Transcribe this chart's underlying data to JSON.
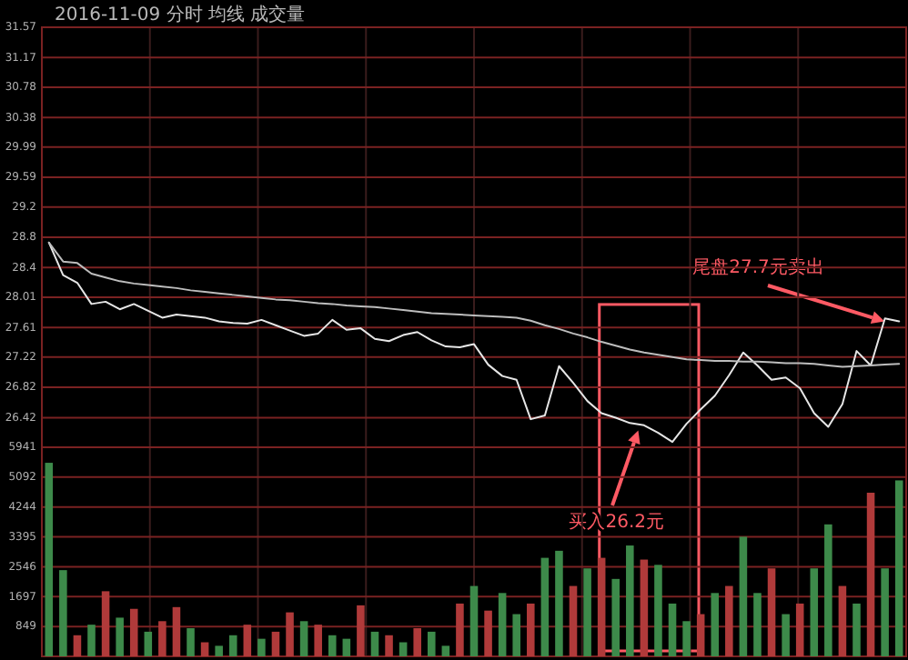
{
  "chart_data": [
    {
      "type": "line",
      "title": "2016-11-09 分时 均线 成交量",
      "categories": [
        null,
        null,
        null,
        null,
        null,
        null,
        null,
        null,
        null,
        null,
        null,
        null,
        null,
        null,
        null,
        null,
        null,
        null,
        null,
        null,
        null,
        null,
        null,
        null,
        null,
        null,
        null,
        null,
        null,
        null,
        null,
        null,
        null,
        null,
        null,
        null,
        null,
        null,
        null,
        null,
        null,
        null,
        null,
        null,
        null,
        null,
        null,
        null,
        null,
        null,
        null,
        null,
        null,
        null,
        null,
        null,
        null,
        null,
        null,
        null,
        null
      ],
      "ylim": [
        26.03,
        31.57
      ],
      "yticks": [
        31.57,
        31.17,
        30.78,
        30.38,
        29.99,
        29.59,
        29.2,
        28.8,
        28.4,
        28.01,
        27.61,
        27.22,
        26.82,
        26.42
      ],
      "grid": true,
      "tick_labels": "y",
      "series": [
        {
          "color": "#e6e6e6",
          "values": [
            28.73,
            28.3,
            28.2,
            27.92,
            27.95,
            27.85,
            27.92,
            27.83,
            27.74,
            27.78,
            27.76,
            27.74,
            27.69,
            27.67,
            27.66,
            27.71,
            27.64,
            27.57,
            27.5,
            27.53,
            27.71,
            27.58,
            27.6,
            27.46,
            27.43,
            27.51,
            27.55,
            27.44,
            27.36,
            27.35,
            27.39,
            27.12,
            26.97,
            26.92,
            26.4,
            26.45,
            27.1,
            26.88,
            26.64,
            26.48,
            26.42,
            26.35,
            26.32,
            26.22,
            26.1,
            26.34,
            26.53,
            26.71,
            26.98,
            27.28,
            27.11,
            26.92,
            26.95,
            26.81,
            26.48,
            26.3,
            26.6,
            27.3,
            27.11,
            27.73,
            27.69
          ]
        },
        {
          "color": "#bdbdbd",
          "values": [
            28.73,
            28.48,
            28.46,
            28.32,
            28.27,
            28.22,
            28.19,
            28.17,
            28.15,
            28.13,
            28.1,
            28.08,
            28.06,
            28.04,
            28.02,
            28.0,
            27.98,
            27.97,
            27.95,
            27.93,
            27.92,
            27.9,
            27.89,
            27.88,
            27.86,
            27.84,
            27.82,
            27.8,
            27.79,
            27.78,
            27.77,
            27.76,
            27.75,
            27.74,
            27.7,
            27.64,
            27.59,
            27.53,
            27.48,
            27.42,
            27.37,
            27.32,
            27.28,
            27.25,
            27.22,
            27.19,
            27.18,
            27.17,
            27.17,
            27.16,
            27.16,
            27.15,
            27.14,
            27.14,
            27.13,
            27.11,
            27.09,
            27.1,
            27.11,
            27.12,
            27.13
          ]
        }
      ],
      "annotations": [
        "买入26.2元",
        "尾盘27.7元卖出"
      ]
    },
    {
      "type": "bar",
      "categories": [
        null,
        null,
        null,
        null,
        null,
        null,
        null,
        null,
        null,
        null,
        null,
        null,
        null,
        null,
        null,
        null,
        null,
        null,
        null,
        null,
        null,
        null,
        null,
        null,
        null,
        null,
        null,
        null,
        null,
        null,
        null,
        null,
        null,
        null,
        null,
        null,
        null,
        null,
        null,
        null,
        null,
        null,
        null,
        null,
        null,
        null,
        null,
        null,
        null,
        null,
        null,
        null,
        null,
        null,
        null,
        null,
        null,
        null,
        null,
        null,
        null
      ],
      "ylim": [
        0,
        5941
      ],
      "yticks": [
        5941,
        5092,
        4244,
        3395,
        2546,
        1697,
        849
      ],
      "grid": true,
      "tick_labels": "y",
      "values": [
        5500,
        2450,
        600,
        900,
        1850,
        1100,
        1350,
        700,
        1000,
        1400,
        800,
        400,
        300,
        600,
        900,
        500,
        700,
        1250,
        1000,
        900,
        600,
        500,
        1450,
        700,
        600,
        400,
        800,
        700,
        300,
        1500,
        2000,
        1300,
        1800,
        1200,
        1500,
        2800,
        3000,
        2000,
        2500,
        2800,
        2200,
        3150,
        2750,
        2600,
        1500,
        1000,
        1200,
        1800,
        2000,
        3400,
        1800,
        2500,
        1200,
        1500,
        2500,
        3750,
        2000,
        1500,
        4650,
        2500,
        5000
      ],
      "colors": [
        "#3d8a4a",
        "#3d8a4a",
        "#b03a3a",
        "#3d8a4a",
        "#b03a3a",
        "#3d8a4a",
        "#b03a3a",
        "#3d8a4a",
        "#b03a3a",
        "#b03a3a",
        "#3d8a4a",
        "#b03a3a",
        "#3d8a4a",
        "#3d8a4a",
        "#b03a3a",
        "#3d8a4a",
        "#b03a3a",
        "#b03a3a",
        "#3d8a4a",
        "#b03a3a",
        "#3d8a4a",
        "#3d8a4a",
        "#b03a3a",
        "#3d8a4a",
        "#b03a3a",
        "#3d8a4a",
        "#b03a3a",
        "#3d8a4a",
        "#3d8a4a",
        "#b03a3a",
        "#3d8a4a",
        "#b03a3a",
        "#3d8a4a",
        "#3d8a4a",
        "#b03a3a",
        "#3d8a4a",
        "#3d8a4a",
        "#b03a3a",
        "#3d8a4a",
        "#b03a3a",
        "#3d8a4a",
        "#3d8a4a",
        "#b03a3a",
        "#3d8a4a",
        "#3d8a4a",
        "#3d8a4a",
        "#b03a3a",
        "#3d8a4a",
        "#b03a3a",
        "#3d8a4a",
        "#3d8a4a",
        "#b03a3a",
        "#3d8a4a",
        "#b03a3a",
        "#3d8a4a",
        "#3d8a4a",
        "#b03a3a",
        "#3d8a4a",
        "#b03a3a",
        "#3d8a4a",
        "#3d8a4a"
      ]
    }
  ]
}
